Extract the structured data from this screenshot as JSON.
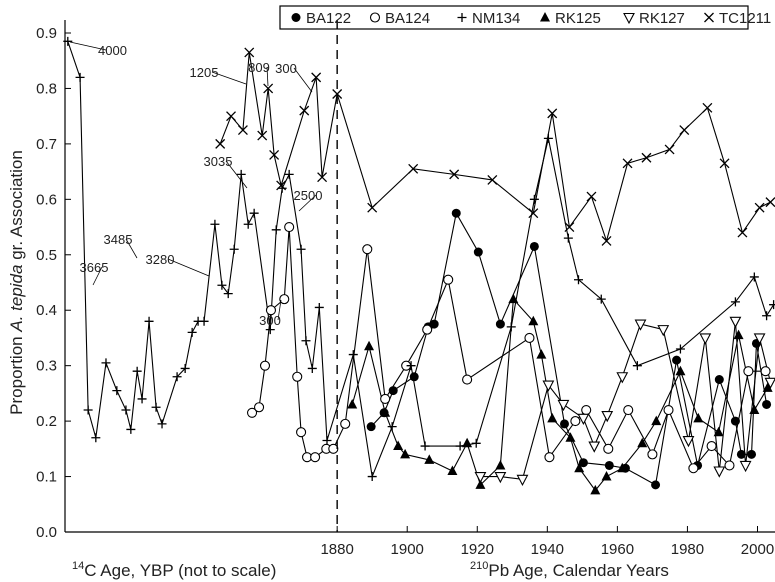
{
  "chart_data": {
    "type": "line",
    "ylabel_parts": [
      "Proportion ",
      "A. tepida",
      " gr. Association"
    ],
    "xlabel_left": {
      "sup": "14",
      "text": "C Age, YBP (not to scale)"
    },
    "xlabel_right": {
      "sup": "210",
      "text": "Pb Age, Calendar Years"
    },
    "xlim": [
      1802.3,
      2005
    ],
    "ylim": [
      0,
      0.9
    ],
    "xticks": [
      1880,
      1900,
      1920,
      1940,
      1960,
      1980,
      2000
    ],
    "yticks": [
      {
        "value": 0,
        "label": "0.0"
      },
      0.1,
      0.2,
      0.3,
      0.4,
      0.5,
      0.6,
      0.7,
      0.8,
      0.9
    ],
    "divider_x": 1880,
    "color": "#000000",
    "series": [
      {
        "name": "BA122",
        "marker": "circle-filled",
        "x": [
          1889.7,
          1893.4,
          1896,
          1902,
          1906,
          1907.7,
          1914,
          1920.3,
          1926.6,
          1936.3,
          1944.9,
          1950.3,
          1957.7,
          1962.3,
          1970.9,
          1976.9,
          1982.9,
          1989.1,
          1993.7,
          1995.4,
          1998.3,
          1999.7,
          2002.6
        ],
        "values": [
          0.19,
          0.215,
          0.255,
          0.28,
          0.37,
          0.375,
          0.575,
          0.505,
          0.375,
          0.515,
          0.195,
          0.125,
          0.12,
          0.115,
          0.085,
          0.31,
          0.12,
          0.275,
          0.2,
          0.14,
          0.14,
          0.34,
          0.23
        ]
      },
      {
        "name": "BA124",
        "marker": "circle-open",
        "x": [
          1855.7,
          1857.7,
          1859.4,
          1861.1,
          1864.9,
          1866.3,
          1868.6,
          1869.7,
          1871.4,
          1873.7,
          1876.9,
          1878.9,
          1882.3,
          1888.6,
          1893.7,
          1899.7,
          1905.7,
          1911.7,
          1917.1,
          1934.9,
          1940.6,
          1948,
          1951.1,
          1957.4,
          1963.1,
          1970,
          1974.6,
          1981.7,
          1986.9,
          1992,
          1997.4,
          2002.3
        ],
        "values": [
          0.215,
          0.225,
          0.3,
          0.4,
          0.42,
          0.55,
          0.28,
          0.18,
          0.135,
          0.135,
          0.15,
          0.15,
          0.195,
          0.51,
          0.24,
          0.3,
          0.365,
          0.455,
          0.275,
          0.35,
          0.135,
          0.2,
          0.22,
          0.15,
          0.22,
          0.14,
          0.22,
          0.115,
          0.155,
          0.12,
          0.29,
          0.29
        ]
      },
      {
        "name": "NM134",
        "marker": "plus",
        "x": [
          1803.1,
          1806.6,
          1808.9,
          1811.1,
          1814,
          1817.1,
          1819.7,
          1821.1,
          1822.9,
          1824.3,
          1826.3,
          1828.3,
          1830,
          1834.3,
          1836.6,
          1838.6,
          1840.3,
          1842,
          1845.1,
          1847.1,
          1848.9,
          1850.6,
          1852.6,
          1854.6,
          1856.3,
          1860.9,
          1862.6,
          1864.3,
          1866.3,
          1869.7,
          1871.1,
          1872.9,
          1874.9,
          1877.1,
          1884.6,
          1890,
          1895.7,
          1901.1,
          1905.1,
          1915.1,
          1919.7,
          1929.7,
          1936.3,
          1940.3,
          1946,
          1948.9,
          1955.4,
          1965.7,
          1978,
          1993.7,
          1999.1,
          2002.6,
          2004.6
        ],
        "values": [
          0.885,
          0.82,
          0.22,
          0.17,
          0.305,
          0.255,
          0.22,
          0.185,
          0.29,
          0.24,
          0.38,
          0.225,
          0.195,
          0.28,
          0.295,
          0.36,
          0.38,
          0.38,
          0.555,
          0.445,
          0.43,
          0.51,
          0.645,
          0.555,
          0.575,
          0.365,
          0.545,
          0.62,
          0.645,
          0.51,
          0.345,
          0.295,
          0.405,
          0.165,
          0.32,
          0.1,
          0.19,
          0.3,
          0.155,
          0.155,
          0.16,
          0.37,
          0.6,
          0.71,
          0.53,
          0.455,
          0.42,
          0.3,
          0.33,
          0.415,
          0.46,
          0.39,
          0.41
        ]
      },
      {
        "name": "RK125",
        "marker": "triangle-up-filled",
        "x": [
          1884.3,
          1889.1,
          1893.7,
          1897.4,
          1899.4,
          1906.3,
          1912.9,
          1917.1,
          1920.9,
          1926.6,
          1930.3,
          1936,
          1938.3,
          1941.4,
          1946.6,
          1949.1,
          1953.7,
          1956.9,
          1961.4,
          1967.1,
          1971.1,
          1978,
          1983.1,
          1988.9,
          1994.6,
          1999.1,
          2002.9
        ],
        "values": [
          0.23,
          0.335,
          0.215,
          0.155,
          0.14,
          0.13,
          0.11,
          0.16,
          0.085,
          0.12,
          0.42,
          0.38,
          0.32,
          0.205,
          0.17,
          0.115,
          0.075,
          0.1,
          0.115,
          0.16,
          0.2,
          0.29,
          0.205,
          0.18,
          0.355,
          0.22,
          0.26
        ]
      },
      {
        "name": "RK127",
        "marker": "triangle-down-open",
        "x": [
          1920.9,
          1926.6,
          1932.9,
          1940.3,
          1944.6,
          1950.3,
          1953.4,
          1957.1,
          1961.4,
          1966.6,
          1973.1,
          1980.3,
          1985.1,
          1989.1,
          1993.7,
          1996.6,
          2000.6,
          2003.7
        ],
        "values": [
          0.1,
          0.1,
          0.095,
          0.265,
          0.23,
          0.205,
          0.155,
          0.21,
          0.28,
          0.375,
          0.365,
          0.165,
          0.35,
          0.11,
          0.38,
          0.12,
          0.35,
          0.27
        ]
      },
      {
        "name": "TC1211",
        "marker": "cross",
        "x": [
          1846.6,
          1849.7,
          1853.1,
          1854.9,
          1858.6,
          1860.3,
          1862,
          1864,
          1870.6,
          1874,
          1875.7,
          1880,
          1890,
          1901.7,
          1913.4,
          1924.3,
          1936,
          1941.4,
          1946.3,
          1952.6,
          1956.9,
          1962.9,
          1968.3,
          1974.9,
          1979.1,
          1985.7,
          1990.6,
          1995.7,
          2000.6,
          2003.7
        ],
        "values": [
          0.7,
          0.75,
          0.725,
          0.865,
          0.715,
          0.8,
          0.68,
          0.625,
          0.76,
          0.82,
          0.64,
          0.79,
          0.585,
          0.655,
          0.645,
          0.635,
          0.575,
          0.755,
          0.55,
          0.605,
          0.525,
          0.665,
          0.675,
          0.69,
          0.725,
          0.765,
          0.665,
          0.54,
          0.585,
          0.595
        ]
      }
    ],
    "annotations": [
      "4000",
      "3665",
      "3485",
      "3280",
      "3035",
      "2500",
      "1205",
      "809",
      "300",
      "300"
    ]
  }
}
